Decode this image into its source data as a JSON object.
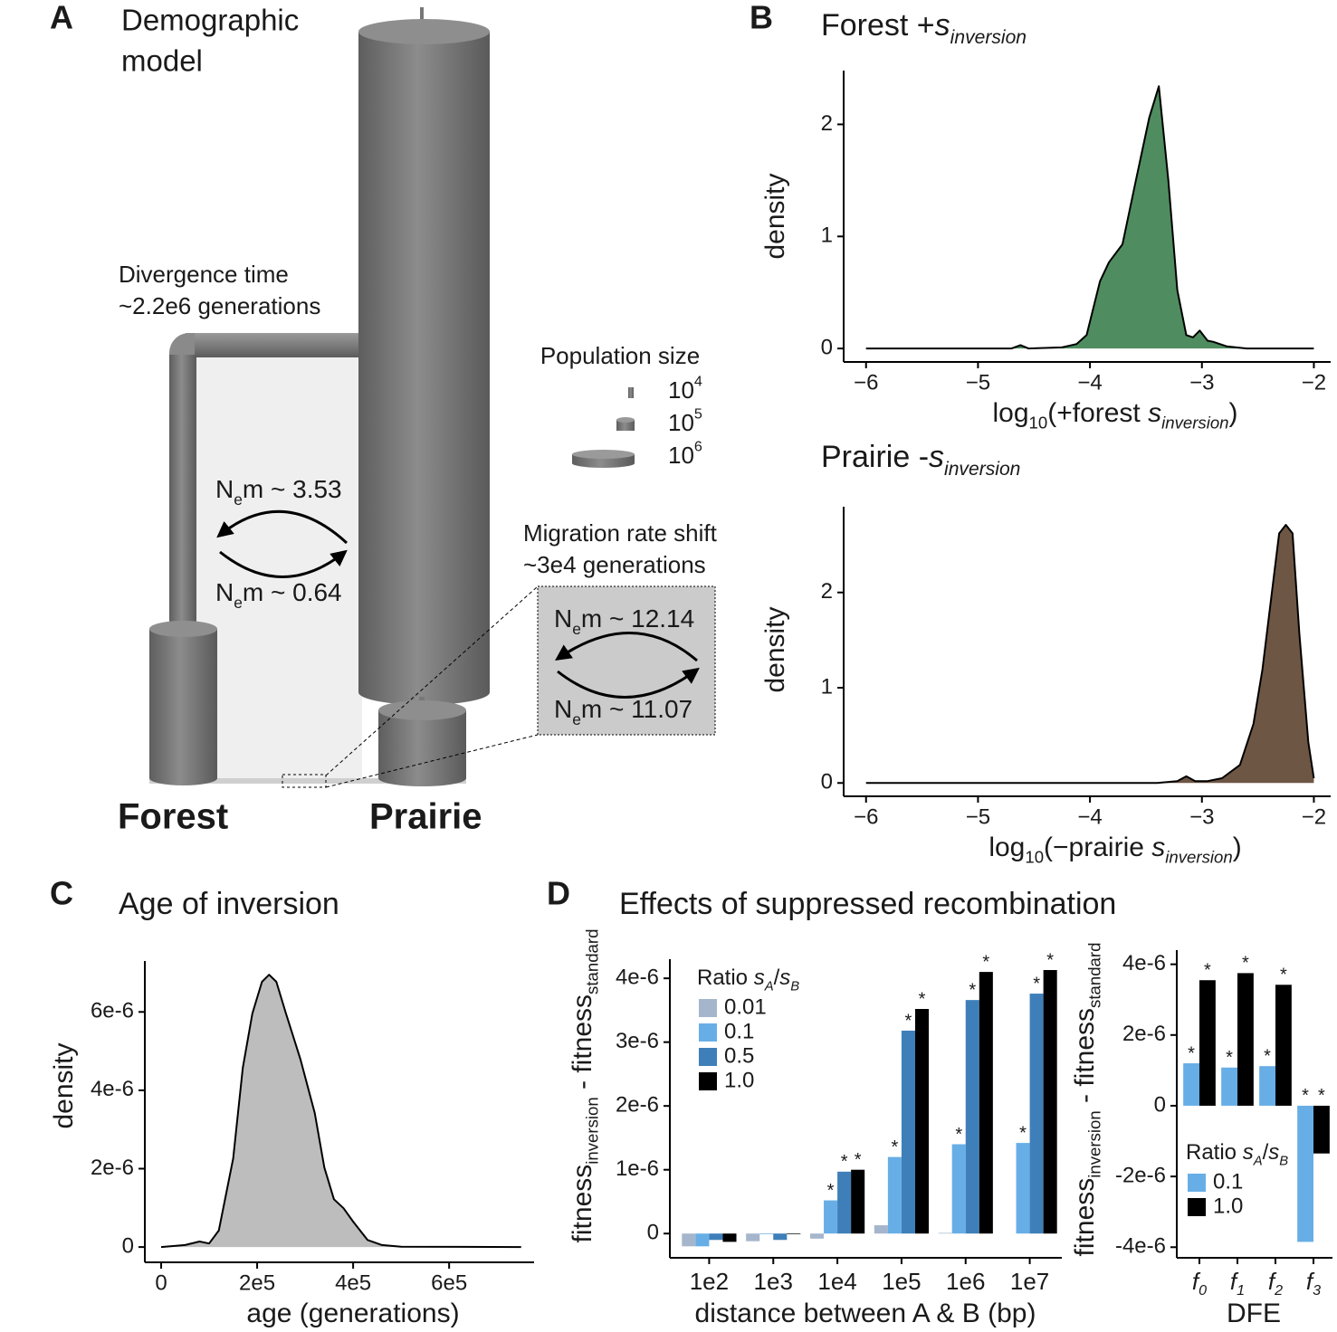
{
  "panel_labels": [
    "A",
    "B",
    "C",
    "D"
  ],
  "demographic_model": {
    "title": [
      "Demographic",
      "model"
    ],
    "divergence": [
      "Divergence time",
      "~2.2e6 generations"
    ],
    "population_size": {
      "title": "Population size",
      "levels": [
        [
          {
            "text": "10"
          },
          {
            "text": "4",
            "style": "sup"
          }
        ],
        [
          {
            "text": "10"
          },
          {
            "text": "5",
            "style": "sup"
          }
        ],
        [
          {
            "text": "10"
          },
          {
            "text": "6",
            "style": "sup"
          }
        ]
      ]
    },
    "migration_before": [
      [
        {
          "text": "N"
        },
        {
          "text": "e",
          "style": "sub"
        },
        {
          "text": "m ~ 3.53"
        }
      ],
      [
        {
          "text": "N"
        },
        {
          "text": "e",
          "style": "sub"
        },
        {
          "text": "m ~ 0.64"
        }
      ]
    ],
    "migration_shift": [
      "Migration rate shift",
      "~3e4 generations"
    ],
    "migration_after": [
      [
        {
          "text": "N"
        },
        {
          "text": "e",
          "style": "sub"
        },
        {
          "text": "m ~ 12.14"
        }
      ],
      [
        {
          "text": "N"
        },
        {
          "text": "e",
          "style": "sub"
        },
        {
          "text": "m ~ 11.07"
        }
      ]
    ],
    "populations": [
      {
        "name": "Forest",
        "color": "#5b9a6e"
      },
      {
        "name": "Prairie",
        "color": "#7a6150"
      }
    ]
  },
  "chart_data": [
    {
      "type": "area",
      "title": [
        {
          "text": "Forest +"
        },
        {
          "text": "s",
          "style": "italic"
        },
        {
          "text": "inversion",
          "style": "italic-sub"
        }
      ],
      "xlabel": [
        {
          "text": "log"
        },
        {
          "text": "10",
          "style": "sub"
        },
        {
          "text": "(+forest "
        },
        {
          "text": "s",
          "style": "italic"
        },
        {
          "text": "inversion",
          "style": "italic-sub"
        },
        {
          "text": ")"
        }
      ],
      "ylabel": "density",
      "color": "#4f8c5f",
      "x": [
        -6,
        -4.7,
        -4.62,
        -4.55,
        -4.25,
        -4.12,
        -4.03,
        -3.91,
        -3.83,
        -3.71,
        -3.59,
        -3.47,
        -3.385,
        -3.3,
        -3.22,
        -3.14,
        -3.08,
        -3.02,
        -2.95,
        -2.9,
        -2.78,
        -2.6,
        -2
      ],
      "values": [
        0,
        0,
        0.03,
        0,
        0.01,
        0.04,
        0.12,
        0.6,
        0.77,
        0.93,
        1.5,
        2.06,
        2.34,
        1.5,
        0.52,
        0.12,
        0.1,
        0.16,
        0.07,
        0.06,
        0.02,
        0,
        0
      ],
      "xlim": [
        -6.2,
        -1.85
      ],
      "ylim": [
        -0.12,
        2.48
      ],
      "xticks": [
        {
          "value": -6,
          "label": "−6"
        },
        {
          "value": -5,
          "label": "−5"
        },
        {
          "value": -4,
          "label": "−4"
        },
        {
          "value": -3,
          "label": "−3"
        },
        {
          "value": -2,
          "label": "−2"
        }
      ],
      "yticks": [
        0,
        1,
        2
      ]
    },
    {
      "type": "area",
      "title": [
        {
          "text": "Prairie -"
        },
        {
          "text": "s",
          "style": "italic"
        },
        {
          "text": "inversion",
          "style": "italic-sub"
        }
      ],
      "xlabel": [
        {
          "text": "log"
        },
        {
          "text": "10",
          "style": "sub"
        },
        {
          "text": "(−prairie "
        },
        {
          "text": "s",
          "style": "italic"
        },
        {
          "text": "inversion",
          "style": "italic-sub"
        },
        {
          "text": ")"
        }
      ],
      "ylabel": "density",
      "color": "#6e5644",
      "x": [
        -6,
        -3.4,
        -3.22,
        -3.14,
        -3.06,
        -2.95,
        -2.82,
        -2.66,
        -2.54,
        -2.46,
        -2.37,
        -2.31,
        -2.25,
        -2.19,
        -2.13,
        -2.05,
        -2.0
      ],
      "values": [
        0,
        0,
        0.02,
        0.07,
        0.02,
        0.02,
        0.05,
        0.19,
        0.62,
        1.19,
        2.05,
        2.62,
        2.71,
        2.62,
        1.57,
        0.43,
        0.05
      ],
      "xlim": [
        -6.2,
        -1.85
      ],
      "ylim": [
        -0.14,
        2.9
      ],
      "xticks": [
        {
          "value": -6,
          "label": "−6"
        },
        {
          "value": -5,
          "label": "−5"
        },
        {
          "value": -4,
          "label": "−4"
        },
        {
          "value": -3,
          "label": "−3"
        },
        {
          "value": -2,
          "label": "−2"
        }
      ],
      "yticks": [
        0,
        1,
        2
      ]
    },
    {
      "type": "area",
      "title": "Age of inversion",
      "xlabel": "age (generations)",
      "ylabel": "density",
      "color": "#bdbdbd",
      "x": [
        0,
        50000,
        80000,
        100000,
        120000,
        150000,
        170000,
        190000,
        210000,
        225000,
        240000,
        260000,
        290000,
        320000,
        340000,
        360000,
        380000,
        400000,
        430000,
        460000,
        500000,
        750000
      ],
      "values": [
        0,
        5e-08,
        1.4e-07,
        9e-08,
        4.2e-07,
        2.26e-06,
        4.57e-06,
        5.96e-06,
        6.77e-06,
        6.95e-06,
        6.77e-06,
        5.96e-06,
        4.8e-06,
        3.42e-06,
        2.03e-06,
        1.22e-06,
        9.9e-07,
        6.5e-07,
        1.8e-07,
        5e-08,
        1e-08,
        0
      ],
      "xlim": [
        -34000,
        777000
      ],
      "ylim": [
        -3.9e-07,
        7.3e-06
      ],
      "xticks": [
        0,
        {
          "value": 200000,
          "label": "2e5"
        },
        {
          "value": 400000,
          "label": "4e5"
        },
        {
          "value": 600000,
          "label": "6e5"
        }
      ],
      "yticks": [
        0,
        {
          "value": 2e-06,
          "label": "2e-6"
        },
        {
          "value": 4e-06,
          "label": "4e-6"
        },
        {
          "value": 6e-06,
          "label": "6e-6"
        }
      ]
    },
    {
      "type": "grouped_bar",
      "title": "Effects of suppressed recombination",
      "xlabel": "distance between A & B (bp)",
      "ylabel": [
        {
          "text": "fitness"
        },
        {
          "text": "inversion",
          "style": "sub"
        },
        {
          "text": " - fitness"
        },
        {
          "text": "standard",
          "style": "sub"
        }
      ],
      "legend_title": [
        {
          "text": "Ratio "
        },
        {
          "text": "s",
          "style": "italic"
        },
        {
          "text": "A",
          "style": "italic-sub"
        },
        {
          "text": "/"
        },
        {
          "text": "s",
          "style": "italic"
        },
        {
          "text": "B",
          "style": "italic-sub"
        }
      ],
      "legend": "top-left",
      "categories": [
        "1e2",
        "1e3",
        "1e4",
        "1e5",
        "1e6",
        "1e7"
      ],
      "series": [
        {
          "name": "0.01",
          "color": "#a5b6cc",
          "values": [
            -2e-07,
            -1.2e-07,
            -8e-08,
            1.3e-07,
            1e-08,
            0
          ],
          "significance": [
            null,
            null,
            null,
            null,
            null,
            null
          ]
        },
        {
          "name": "0.1",
          "color": "#68aee6",
          "values": [
            -2e-07,
            -1e-08,
            5.2e-07,
            1.2e-06,
            1.4e-06,
            1.42e-06
          ],
          "significance": [
            null,
            null,
            "*",
            "*",
            "*",
            "*"
          ]
        },
        {
          "name": "0.5",
          "color": "#3f7fb9",
          "values": [
            -1e-07,
            -1e-07,
            9.7e-07,
            3.18e-06,
            3.66e-06,
            3.76e-06
          ],
          "significance": [
            null,
            null,
            "*",
            "*",
            "*",
            "*"
          ]
        },
        {
          "name": "1.0",
          "color": "#000000",
          "values": [
            -1.3e-07,
            -1e-08,
            1e-06,
            3.52e-06,
            4.1e-06,
            4.13e-06
          ],
          "significance": [
            null,
            null,
            "*",
            "*",
            "*",
            "*"
          ]
        }
      ],
      "ylim": [
        -3.8e-07,
        4.3e-06
      ],
      "yticks": [
        0,
        {
          "value": 1e-06,
          "label": "1e-6"
        },
        {
          "value": 2e-06,
          "label": "2e-6"
        },
        {
          "value": 3e-06,
          "label": "3e-6"
        },
        {
          "value": 4e-06,
          "label": "4e-6"
        }
      ]
    },
    {
      "type": "grouped_bar",
      "xlabel": "DFE",
      "ylabel": [
        {
          "text": "fitness"
        },
        {
          "text": "inversion",
          "style": "sub"
        },
        {
          "text": " - fitness"
        },
        {
          "text": "standard",
          "style": "sub"
        }
      ],
      "legend_title": [
        {
          "text": "Ratio "
        },
        {
          "text": "s",
          "style": "italic"
        },
        {
          "text": "A",
          "style": "italic-sub"
        },
        {
          "text": "/"
        },
        {
          "text": "s",
          "style": "italic"
        },
        {
          "text": "B",
          "style": "italic-sub"
        }
      ],
      "legend": "bottom-left",
      "categories": [
        [
          {
            "text": "f",
            "style": "italic"
          },
          {
            "text": "0",
            "style": "italic-sub"
          }
        ],
        [
          {
            "text": "f",
            "style": "italic"
          },
          {
            "text": "1",
            "style": "italic-sub"
          }
        ],
        [
          {
            "text": "f",
            "style": "italic"
          },
          {
            "text": "2",
            "style": "italic-sub"
          }
        ],
        [
          {
            "text": "f",
            "style": "italic"
          },
          {
            "text": "3",
            "style": "italic-sub"
          }
        ]
      ],
      "series": [
        {
          "name": "0.1",
          "color": "#68aee6",
          "values": [
            1.2e-06,
            1.08e-06,
            1.12e-06,
            -3.85e-06
          ],
          "significance": [
            "*",
            "*",
            "*",
            "*"
          ]
        },
        {
          "name": "1.0",
          "color": "#000000",
          "values": [
            3.55e-06,
            3.75e-06,
            3.42e-06,
            -1.35e-06
          ],
          "significance": [
            "*",
            "*",
            "*",
            "*"
          ]
        }
      ],
      "ylim": [
        -4.3e-06,
        4.4e-06
      ],
      "yticks": [
        {
          "value": -4e-06,
          "label": "-4e-6"
        },
        {
          "value": -2e-06,
          "label": "-2e-6"
        },
        0,
        {
          "value": 2e-06,
          "label": "2e-6"
        },
        {
          "value": 4e-06,
          "label": "4e-6"
        }
      ]
    }
  ]
}
